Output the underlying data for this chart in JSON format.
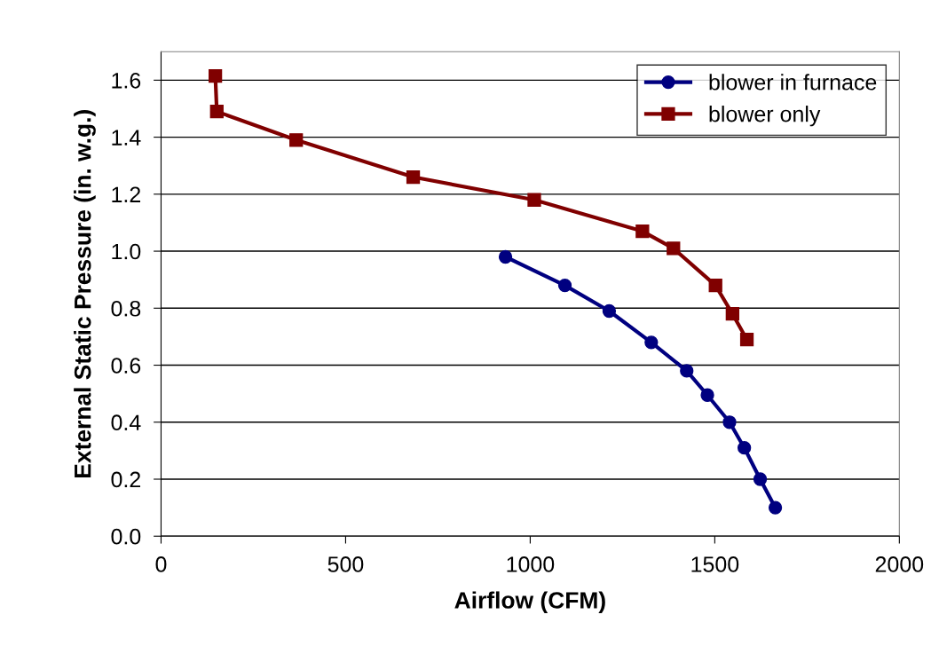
{
  "chart_data": {
    "type": "line",
    "xlabel": "Airflow (CFM)",
    "ylabel": "External Static Pressure (in. w.g.)",
    "series": [
      {
        "name": "blower in furnace",
        "color": "#000080",
        "marker": "circle",
        "x": [
          933,
          1094,
          1214,
          1328,
          1424,
          1480,
          1540,
          1580,
          1623,
          1664
        ],
        "values": [
          0.98,
          0.88,
          0.79,
          0.68,
          0.58,
          0.495,
          0.4,
          0.31,
          0.2,
          0.1
        ]
      },
      {
        "name": "blower only",
        "color": "#800000",
        "marker": "square",
        "x": [
          147,
          151,
          366,
          683,
          1011,
          1304,
          1388,
          1502,
          1548,
          1587
        ],
        "values": [
          1.615,
          1.49,
          1.39,
          1.26,
          1.18,
          1.07,
          1.01,
          0.88,
          0.78,
          0.69
        ]
      }
    ],
    "xlim": [
      0,
      2000
    ],
    "xticks": [
      0,
      500,
      1000,
      1500,
      2000
    ],
    "ylim": [
      0,
      1.7
    ],
    "yticks": [
      {
        "value": 0,
        "label": "0.0"
      },
      {
        "value": 0.2,
        "label": "0.2"
      },
      {
        "value": 0.4,
        "label": "0.4"
      },
      {
        "value": 0.6,
        "label": "0.6"
      },
      {
        "value": 0.8,
        "label": "0.8"
      },
      {
        "value": 1.0,
        "label": "1.0"
      },
      {
        "value": 1.2,
        "label": "1.2"
      },
      {
        "value": 1.4,
        "label": "1.4"
      },
      {
        "value": 1.6,
        "label": "1.6"
      }
    ],
    "grid": "y",
    "legend": "top right",
    "line_style": "solid"
  }
}
